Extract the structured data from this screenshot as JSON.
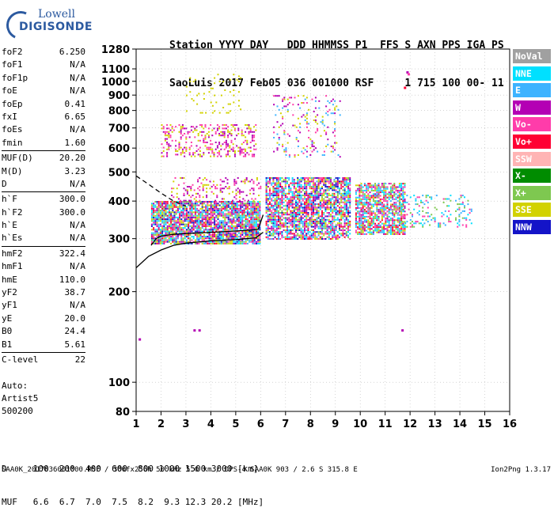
{
  "logo": {
    "line1": "Lowell",
    "line2": "DIGISONDE"
  },
  "header": {
    "line1": "Station YYYY DAY   DDD HHMMSS P1  FFS S AXN PPS IGA PS",
    "line2": "SaoLuis 2017 Feb05 036 001000 RSF     1 715 100 00- 11"
  },
  "params": [
    {
      "label": "foF2",
      "value": "6.250"
    },
    {
      "label": "foF1",
      "value": "N/A"
    },
    {
      "label": "foF1p",
      "value": "N/A"
    },
    {
      "label": "foE",
      "value": "N/A"
    },
    {
      "label": "foEp",
      "value": "0.41"
    },
    {
      "label": "fxI",
      "value": "6.65"
    },
    {
      "label": "foEs",
      "value": "N/A"
    },
    {
      "label": "fmin",
      "value": "1.60"
    },
    {
      "label": "MUF(D)",
      "value": "20.20",
      "div": true
    },
    {
      "label": "M(D)",
      "value": "3.23"
    },
    {
      "label": "D",
      "value": "N/A"
    },
    {
      "label": "h`F",
      "value": "300.0",
      "div": true
    },
    {
      "label": "h`F2",
      "value": "300.0"
    },
    {
      "label": "h`E",
      "value": "N/A"
    },
    {
      "label": "h`Es",
      "value": "N/A"
    },
    {
      "label": "hmF2",
      "value": "322.4",
      "div": true
    },
    {
      "label": "hmF1",
      "value": "N/A"
    },
    {
      "label": "hmE",
      "value": "110.0"
    },
    {
      "label": "yF2",
      "value": "38.7"
    },
    {
      "label": "yF1",
      "value": "N/A"
    },
    {
      "label": "yE",
      "value": "20.0"
    },
    {
      "label": "B0",
      "value": "24.4"
    },
    {
      "label": "B1",
      "value": "5.61"
    },
    {
      "label": "C-level",
      "value": "22",
      "div": true
    }
  ],
  "auto": {
    "line1": "Auto:",
    "line2": "Artist5",
    "line3": "500200"
  },
  "bottom": {
    "d_row": "D     100  200  400  600  800 1000 1500 3000 [km]",
    "muf_row": "MUF   6.6  6.7  7.0  7.5  8.2  9.3 12.3 20.2 [MHz]"
  },
  "footer": {
    "left": "SAA0K_2017036001000.RSF / 300fx256h 50 kHz 5.0 km / DPS-4 SAA0K 903 / 2.6 S 315.8 E",
    "right": "Ion2Png 1.3.17"
  },
  "legend": [
    {
      "label": "NoVal",
      "color": "#a0a0a0"
    },
    {
      "label": "NNE",
      "color": "#00e0ff"
    },
    {
      "label": "E",
      "color": "#3db3ff"
    },
    {
      "label": "W",
      "color": "#b400b4"
    },
    {
      "label": "Vo-",
      "color": "#ff3caa"
    },
    {
      "label": "Vo+",
      "color": "#ff0033"
    },
    {
      "label": "SSW",
      "color": "#ffb4b4"
    },
    {
      "label": "X-",
      "color": "#008c00"
    },
    {
      "label": "X+",
      "color": "#7ec850"
    },
    {
      "label": "SSE",
      "color": "#d2d200"
    },
    {
      "label": "NNW",
      "color": "#1414c8"
    }
  ],
  "chart_data": {
    "type": "scatter",
    "xlabel": "",
    "ylabel": "",
    "xlim": [
      1,
      16
    ],
    "ylim": [
      80,
      1280
    ],
    "y_scale": "log",
    "grid": "dotted",
    "x_ticks": [
      "1",
      "2",
      "3",
      "4",
      "5",
      "6",
      "7",
      "8",
      "9",
      "10",
      "11",
      "12",
      "13",
      "14",
      "15",
      "16"
    ],
    "x_tick_values": [
      1,
      2,
      3,
      4,
      5,
      6,
      7,
      8,
      9,
      10,
      11,
      12,
      13,
      14,
      15,
      16
    ],
    "y_ticks": [
      "80",
      "100",
      "200",
      "300",
      "400",
      "500",
      "600",
      "700",
      "800",
      "900",
      "1000",
      "1100",
      "1280"
    ],
    "y_tick_values": [
      80,
      100,
      200,
      300,
      400,
      500,
      600,
      700,
      800,
      900,
      1000,
      1100,
      1280
    ],
    "trace_profile": {
      "x": [
        1.0,
        1.5,
        2.0,
        2.5,
        3.0,
        4.0,
        5.0,
        5.8,
        6.1
      ],
      "y": [
        240,
        262,
        275,
        285,
        290,
        295,
        298,
        302,
        315
      ]
    },
    "trace_profile_upper": {
      "x": [
        1.6,
        1.8,
        2.0,
        2.5,
        3.0,
        4.0,
        5.0,
        5.9,
        6.1
      ],
      "y": [
        285,
        300,
        306,
        310,
        312,
        315,
        318,
        322,
        360
      ]
    },
    "dashed_extrapolation": {
      "x": [
        1.0,
        1.5,
        2.0,
        2.5,
        3.0
      ],
      "y": [
        485,
        455,
        425,
        400,
        385
      ]
    },
    "echo_clusters": [
      {
        "x0": 1.6,
        "x1": 6.0,
        "y0": 290,
        "y1": 400,
        "density": 0.85,
        "colors": [
          "W",
          "Vo-",
          "Vo+",
          "SSE",
          "X+",
          "NNE",
          "E",
          "NNW"
        ]
      },
      {
        "x0": 2.4,
        "x1": 6.0,
        "y0": 400,
        "y1": 480,
        "density": 0.25,
        "colors": [
          "W",
          "Vo-",
          "SSE"
        ]
      },
      {
        "x0": 2.0,
        "x1": 5.8,
        "y0": 560,
        "y1": 720,
        "density": 0.3,
        "colors": [
          "SSE",
          "W",
          "Vo-"
        ]
      },
      {
        "x0": 3.0,
        "x1": 5.2,
        "y0": 780,
        "y1": 1060,
        "density": 0.06,
        "colors": [
          "SSE"
        ]
      },
      {
        "x0": 6.2,
        "x1": 9.6,
        "y0": 300,
        "y1": 480,
        "density": 0.75,
        "colors": [
          "Vo+",
          "Vo-",
          "W",
          "SSE",
          "X+",
          "E",
          "NNW",
          "NNE"
        ]
      },
      {
        "x0": 6.5,
        "x1": 9.2,
        "y0": 560,
        "y1": 900,
        "density": 0.12,
        "colors": [
          "W",
          "Vo-",
          "SSE",
          "E"
        ]
      },
      {
        "x0": 9.8,
        "x1": 11.8,
        "y0": 310,
        "y1": 460,
        "density": 0.75,
        "colors": [
          "SSE",
          "E",
          "NNE",
          "Vo+",
          "Vo-",
          "W",
          "X+"
        ]
      },
      {
        "x0": 11.5,
        "x1": 14.5,
        "y0": 330,
        "y1": 420,
        "density": 0.2,
        "colors": [
          "E",
          "NNE",
          "X+",
          "Vo-"
        ]
      }
    ],
    "sparse_points": [
      {
        "x": 11.85,
        "y": 1080,
        "c": "W"
      },
      {
        "x": 11.9,
        "y": 1065,
        "c": "Vo-"
      },
      {
        "x": 11.75,
        "y": 960,
        "c": "Vo+"
      },
      {
        "x": 11.65,
        "y": 150,
        "c": "W"
      },
      {
        "x": 3.3,
        "y": 150,
        "c": "W"
      },
      {
        "x": 3.5,
        "y": 150,
        "c": "W"
      },
      {
        "x": 1.1,
        "y": 140,
        "c": "W"
      }
    ]
  }
}
